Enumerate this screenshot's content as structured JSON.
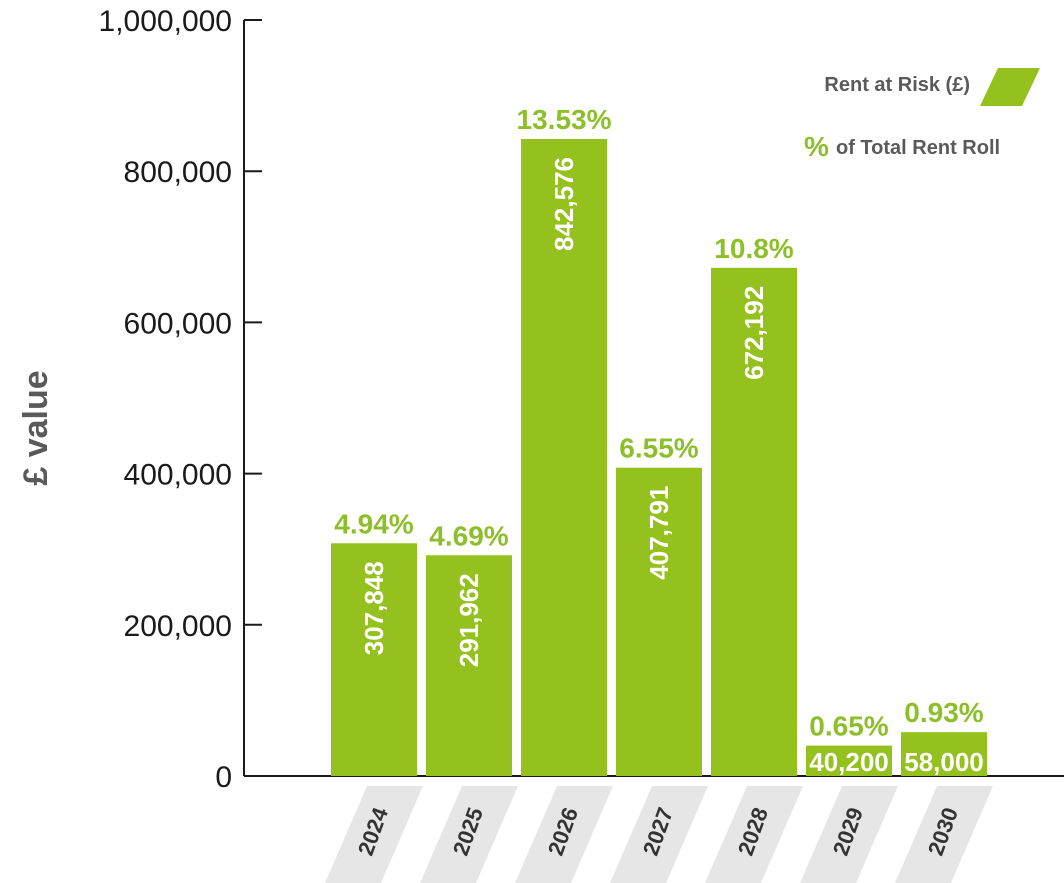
{
  "chart_data": {
    "type": "bar",
    "ylabel": "£ value",
    "ylim": [
      0,
      1000000
    ],
    "yticks": [
      0,
      200000,
      400000,
      600000,
      800000,
      1000000
    ],
    "ytick_labels": [
      "0",
      "200,000",
      "400,000",
      "600,000",
      "800,000",
      "1,000,000"
    ],
    "categories": [
      "2024",
      "2025",
      "2026",
      "2027",
      "2028",
      "2029",
      "2030"
    ],
    "series": [
      {
        "name": "Rent at Risk (£)",
        "values": [
          307848,
          291962,
          842576,
          407791,
          672192,
          40200,
          58000
        ],
        "value_labels": [
          "307,848",
          "291,962",
          "842,576",
          "407,791",
          "672,192",
          "40,200",
          "58,000"
        ],
        "color": "#95c11f"
      },
      {
        "name": "% of Total Rent Roll",
        "values": [
          4.94,
          4.69,
          13.53,
          6.55,
          10.8,
          0.65,
          0.93
        ],
        "value_labels": [
          "4.94%",
          "4.69%",
          "13.53%",
          "6.55%",
          "10.8%",
          "0.65%",
          "0.93%"
        ],
        "color": "#8dbf2a"
      }
    ],
    "legend": {
      "position": "top-right",
      "rent_label": "Rent at Risk (£)",
      "pct_symbol": "%",
      "pct_label": "of Total Rent Roll"
    },
    "category_band_color": "#e6e6e6"
  }
}
